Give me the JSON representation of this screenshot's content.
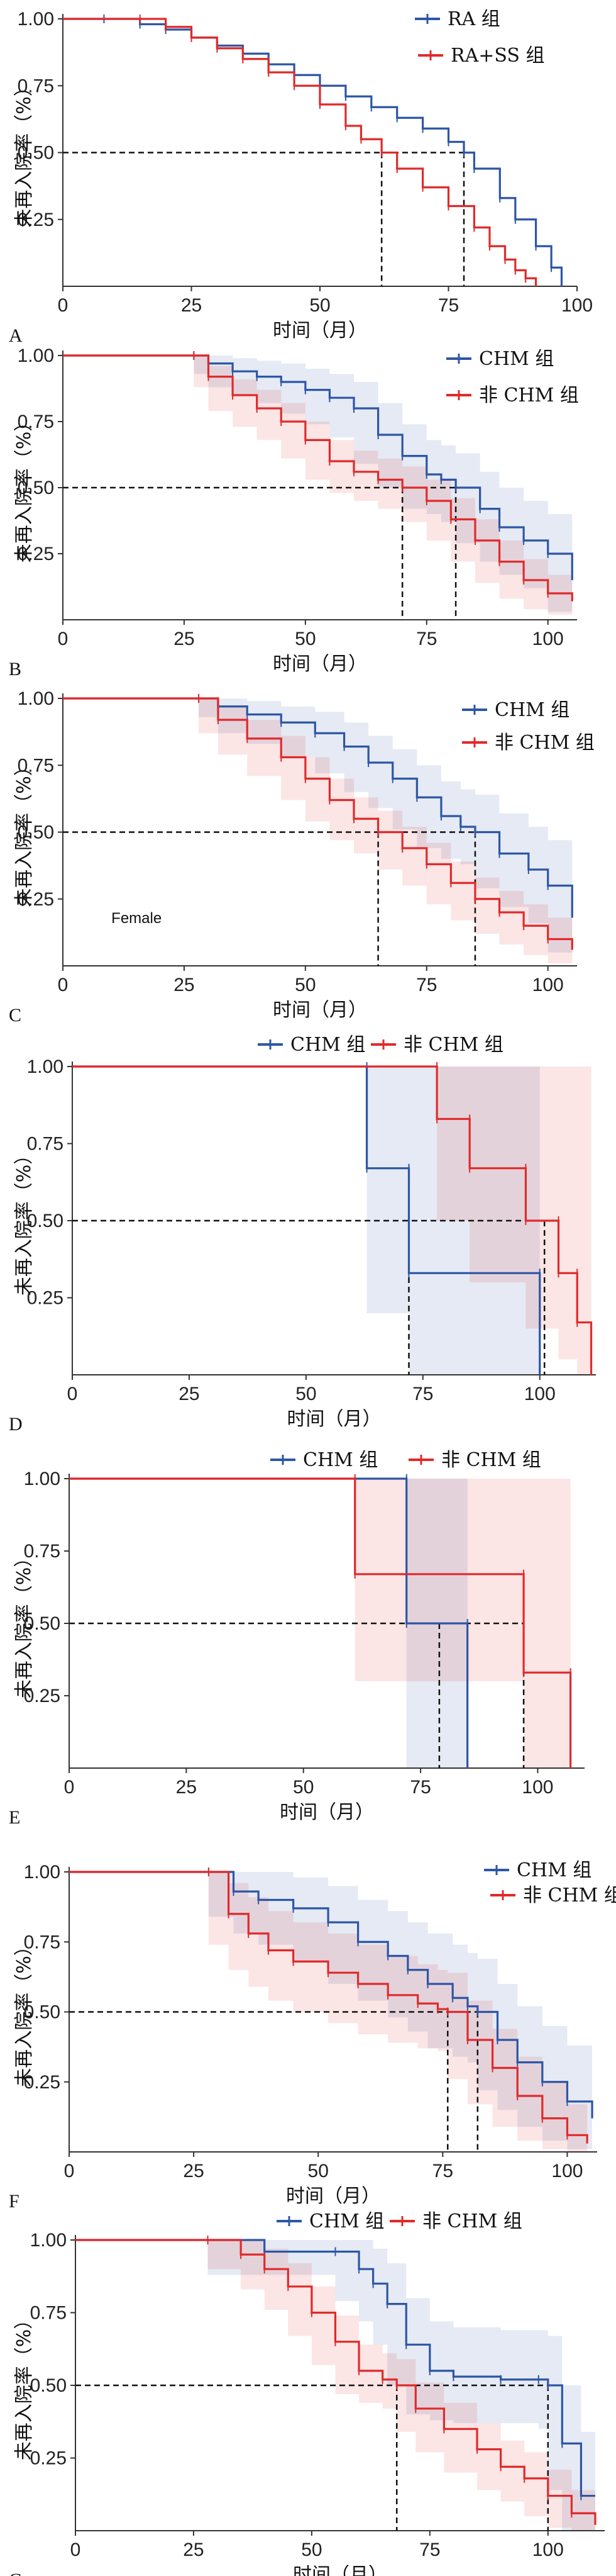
{
  "chart_data": [
    {
      "id": "A",
      "type": "line",
      "panel_label": "A",
      "xlabel": "时间（月）",
      "ylabel": "未再入院率（%）",
      "xlim": [
        0,
        100
      ],
      "ylim": [
        0,
        1
      ],
      "xticks": [
        0,
        25,
        50,
        75,
        100
      ],
      "yticks": [
        0.25,
        0.5,
        0.75,
        1.0
      ],
      "median_line_y": 0.5,
      "legend_position": "top-right",
      "series": [
        {
          "name": "RA 组",
          "color": "#2d56a6",
          "median": 78,
          "x": [
            0,
            8,
            15,
            20,
            25,
            30,
            35,
            40,
            45,
            50,
            55,
            60,
            65,
            70,
            75,
            78,
            80,
            85,
            88,
            92,
            95,
            97
          ],
          "y": [
            1.0,
            1.0,
            0.98,
            0.96,
            0.93,
            0.9,
            0.87,
            0.83,
            0.79,
            0.75,
            0.71,
            0.67,
            0.63,
            0.59,
            0.54,
            0.5,
            0.44,
            0.33,
            0.25,
            0.15,
            0.07,
            0.0
          ],
          "ci_lower": [],
          "ci_upper": []
        },
        {
          "name": "RA+SS 组",
          "color": "#e02a2a",
          "median": 62,
          "x": [
            0,
            15,
            20,
            25,
            30,
            35,
            40,
            45,
            50,
            55,
            58,
            62,
            65,
            70,
            75,
            80,
            83,
            86,
            88,
            90,
            92
          ],
          "y": [
            1.0,
            1.0,
            0.97,
            0.93,
            0.89,
            0.85,
            0.8,
            0.75,
            0.68,
            0.6,
            0.55,
            0.5,
            0.44,
            0.37,
            0.3,
            0.22,
            0.15,
            0.1,
            0.06,
            0.03,
            0.0
          ],
          "ci_lower": [],
          "ci_upper": []
        }
      ]
    },
    {
      "id": "B",
      "type": "line",
      "panel_label": "B",
      "xlabel": "时间（月）",
      "ylabel": "未再入院率（%）",
      "xlim": [
        0,
        106
      ],
      "ylim": [
        0,
        1
      ],
      "xticks": [
        0,
        25,
        50,
        75,
        100
      ],
      "yticks": [
        0.25,
        0.5,
        0.75,
        1.0
      ],
      "median_line_y": 0.5,
      "legend_position": "top-right",
      "series": [
        {
          "name": "CHM 组",
          "color": "#2d56a6",
          "median": 81,
          "x": [
            0,
            27,
            30,
            35,
            40,
            45,
            50,
            55,
            60,
            65,
            70,
            75,
            78,
            81,
            86,
            90,
            95,
            100,
            105
          ],
          "y": [
            1.0,
            1.0,
            0.97,
            0.94,
            0.92,
            0.9,
            0.87,
            0.84,
            0.8,
            0.7,
            0.62,
            0.55,
            0.53,
            0.5,
            0.42,
            0.35,
            0.3,
            0.25,
            0.15
          ],
          "ci_lower": [
            1.0,
            1.0,
            0.93,
            0.88,
            0.85,
            0.82,
            0.78,
            0.74,
            0.69,
            0.59,
            0.5,
            0.42,
            0.4,
            0.37,
            0.29,
            0.22,
            0.17,
            0.12,
            0.03
          ],
          "ci_upper": [
            1.0,
            1.0,
            1.0,
            0.99,
            0.98,
            0.97,
            0.95,
            0.93,
            0.9,
            0.82,
            0.74,
            0.68,
            0.66,
            0.63,
            0.56,
            0.5,
            0.45,
            0.4,
            0.32
          ]
        },
        {
          "name": "非 CHM 组",
          "color": "#e02a2a",
          "median": 70,
          "x": [
            0,
            27,
            30,
            35,
            40,
            45,
            50,
            55,
            60,
            65,
            70,
            75,
            80,
            85,
            90,
            95,
            100,
            105
          ],
          "y": [
            1.0,
            1.0,
            0.92,
            0.85,
            0.8,
            0.75,
            0.68,
            0.6,
            0.56,
            0.53,
            0.5,
            0.45,
            0.38,
            0.3,
            0.22,
            0.15,
            0.1,
            0.07
          ],
          "ci_lower": [
            1.0,
            1.0,
            0.88,
            0.79,
            0.73,
            0.68,
            0.61,
            0.53,
            0.48,
            0.45,
            0.42,
            0.37,
            0.3,
            0.22,
            0.14,
            0.08,
            0.04,
            0.02
          ],
          "ci_upper": [
            1.0,
            1.0,
            0.96,
            0.91,
            0.87,
            0.82,
            0.75,
            0.68,
            0.64,
            0.61,
            0.58,
            0.53,
            0.46,
            0.38,
            0.3,
            0.23,
            0.17,
            0.13
          ]
        }
      ]
    },
    {
      "id": "C",
      "type": "line",
      "panel_label": "C",
      "annotation": "Female",
      "xlabel": "时间（月）",
      "ylabel": "未再入院率（%）",
      "xlim": [
        0,
        106
      ],
      "ylim": [
        0,
        1
      ],
      "xticks": [
        0,
        25,
        50,
        75,
        100
      ],
      "yticks": [
        0.25,
        0.5,
        0.75,
        1.0
      ],
      "median_line_y": 0.5,
      "legend_position": "top-right",
      "series": [
        {
          "name": "CHM 组",
          "color": "#2d56a6",
          "median": 85,
          "x": [
            0,
            28,
            32,
            38,
            45,
            52,
            58,
            63,
            68,
            73,
            78,
            82,
            85,
            90,
            96,
            100,
            105
          ],
          "y": [
            1.0,
            1.0,
            0.97,
            0.94,
            0.91,
            0.87,
            0.82,
            0.76,
            0.7,
            0.63,
            0.56,
            0.52,
            0.5,
            0.42,
            0.36,
            0.3,
            0.18
          ],
          "ci_lower": [
            1.0,
            1.0,
            0.93,
            0.87,
            0.83,
            0.78,
            0.72,
            0.65,
            0.59,
            0.51,
            0.44,
            0.4,
            0.38,
            0.29,
            0.22,
            0.16,
            0.05
          ],
          "ci_upper": [
            1.0,
            1.0,
            1.0,
            0.99,
            0.97,
            0.95,
            0.91,
            0.86,
            0.81,
            0.75,
            0.69,
            0.66,
            0.64,
            0.57,
            0.52,
            0.47,
            0.38
          ]
        },
        {
          "name": "非 CHM 组",
          "color": "#e02a2a",
          "median": 65,
          "x": [
            0,
            28,
            32,
            38,
            45,
            50,
            55,
            60,
            65,
            70,
            75,
            80,
            85,
            90,
            95,
            100,
            105
          ],
          "y": [
            1.0,
            1.0,
            0.92,
            0.85,
            0.78,
            0.7,
            0.62,
            0.55,
            0.5,
            0.44,
            0.38,
            0.31,
            0.25,
            0.2,
            0.15,
            0.1,
            0.06
          ],
          "ci_lower": [
            1.0,
            1.0,
            0.87,
            0.79,
            0.71,
            0.62,
            0.54,
            0.47,
            0.42,
            0.36,
            0.3,
            0.23,
            0.17,
            0.12,
            0.08,
            0.04,
            0.01
          ],
          "ci_upper": [
            1.0,
            1.0,
            0.97,
            0.92,
            0.86,
            0.78,
            0.7,
            0.63,
            0.58,
            0.52,
            0.46,
            0.39,
            0.33,
            0.28,
            0.23,
            0.18,
            0.13
          ]
        }
      ]
    },
    {
      "id": "D",
      "type": "line",
      "panel_label": "D",
      "xlabel": "时间（月）",
      "ylabel": "未再入院率（%）",
      "xlim": [
        0,
        112
      ],
      "ylim": [
        0,
        1
      ],
      "xticks": [
        0,
        25,
        50,
        75,
        100
      ],
      "yticks": [
        0.25,
        0.5,
        0.75,
        1.0
      ],
      "median_line_y": 0.5,
      "legend_position": "top",
      "series": [
        {
          "name": "CHM 组",
          "color": "#2d56a6",
          "median": 72,
          "x": [
            0,
            63,
            63,
            72,
            72,
            100,
            100
          ],
          "y": [
            1.0,
            1.0,
            0.67,
            0.67,
            0.33,
            0.33,
            0.0
          ],
          "ci_lower": [
            1.0,
            1.0,
            0.2,
            0.2,
            0.0,
            0.0,
            0.0
          ],
          "ci_upper": [
            1.0,
            1.0,
            1.0,
            1.0,
            1.0,
            1.0,
            1.0
          ]
        },
        {
          "name": "非 CHM 组",
          "color": "#e02a2a",
          "median": 101,
          "x": [
            0,
            78,
            78,
            85,
            85,
            97,
            97,
            104,
            104,
            108,
            108,
            111
          ],
          "y": [
            1.0,
            1.0,
            0.83,
            0.83,
            0.67,
            0.67,
            0.5,
            0.5,
            0.33,
            0.33,
            0.17,
            0.0
          ],
          "ci_lower": [
            1.0,
            1.0,
            0.5,
            0.5,
            0.3,
            0.3,
            0.15,
            0.15,
            0.05,
            0.05,
            0.0,
            0.0
          ],
          "ci_upper": [
            1.0,
            1.0,
            1.0,
            1.0,
            1.0,
            1.0,
            1.0,
            1.0,
            1.0,
            1.0,
            1.0,
            1.0
          ]
        }
      ]
    },
    {
      "id": "E",
      "type": "line",
      "panel_label": "E",
      "xlabel": "时间（月）",
      "ylabel": "未再入院率（%）",
      "xlim": [
        0,
        110
      ],
      "ylim": [
        0,
        1
      ],
      "xticks": [
        0,
        25,
        50,
        75,
        100
      ],
      "yticks": [
        0.25,
        0.5,
        0.75,
        1.0
      ],
      "median_line_y": 0.5,
      "legend_position": "top",
      "series": [
        {
          "name": "CHM 组",
          "color": "#2d56a6",
          "median": 79,
          "x": [
            0,
            72,
            72,
            85,
            85
          ],
          "y": [
            1.0,
            1.0,
            0.5,
            0.5,
            0.0
          ],
          "ci_lower": [
            1.0,
            1.0,
            0.0,
            0.0,
            0.0
          ],
          "ci_upper": [
            1.0,
            1.0,
            1.0,
            1.0,
            1.0
          ]
        },
        {
          "name": "非 CHM 组",
          "color": "#e02a2a",
          "median": 97,
          "x": [
            0,
            61,
            61,
            97,
            97,
            107,
            107
          ],
          "y": [
            1.0,
            1.0,
            0.67,
            0.67,
            0.33,
            0.33,
            0.0
          ],
          "ci_lower": [
            1.0,
            1.0,
            0.3,
            0.3,
            0.0,
            0.0,
            0.0
          ],
          "ci_upper": [
            1.0,
            1.0,
            1.0,
            1.0,
            1.0,
            1.0,
            1.0
          ]
        }
      ]
    },
    {
      "id": "F",
      "type": "line",
      "panel_label": "F",
      "xlabel": "时间（月）",
      "ylabel": "未再入院率（%）",
      "xlim": [
        0,
        106
      ],
      "ylim": [
        0,
        1
      ],
      "xticks": [
        0,
        25,
        50,
        75,
        100
      ],
      "yticks": [
        0.25,
        0.5,
        0.75,
        1.0
      ],
      "median_line_y": 0.5,
      "legend_position": "top-right",
      "series": [
        {
          "name": "CHM 组",
          "color": "#2d56a6",
          "median": 82,
          "x": [
            0,
            28,
            33,
            38,
            45,
            52,
            58,
            64,
            68,
            72,
            77,
            80,
            82,
            86,
            90,
            95,
            100,
            105
          ],
          "y": [
            1.0,
            1.0,
            0.93,
            0.9,
            0.87,
            0.82,
            0.75,
            0.7,
            0.65,
            0.6,
            0.55,
            0.52,
            0.5,
            0.4,
            0.32,
            0.25,
            0.18,
            0.12
          ],
          "ci_lower": [
            1.0,
            1.0,
            0.84,
            0.78,
            0.74,
            0.68,
            0.6,
            0.54,
            0.48,
            0.43,
            0.37,
            0.34,
            0.32,
            0.22,
            0.15,
            0.09,
            0.04,
            0.01
          ],
          "ci_upper": [
            1.0,
            1.0,
            1.0,
            1.0,
            0.98,
            0.95,
            0.9,
            0.86,
            0.82,
            0.78,
            0.74,
            0.71,
            0.69,
            0.6,
            0.52,
            0.45,
            0.38,
            0.32
          ]
        },
        {
          "name": "非 CHM 组",
          "color": "#e02a2a",
          "median": 76,
          "x": [
            0,
            28,
            32,
            36,
            40,
            45,
            52,
            58,
            64,
            70,
            74,
            76,
            80,
            85,
            90,
            95,
            100,
            104
          ],
          "y": [
            1.0,
            1.0,
            0.85,
            0.78,
            0.72,
            0.68,
            0.64,
            0.6,
            0.56,
            0.53,
            0.51,
            0.5,
            0.4,
            0.3,
            0.2,
            0.12,
            0.06,
            0.03
          ],
          "ci_lower": [
            1.0,
            1.0,
            0.74,
            0.65,
            0.59,
            0.54,
            0.5,
            0.46,
            0.42,
            0.39,
            0.37,
            0.36,
            0.26,
            0.17,
            0.09,
            0.04,
            0.01,
            0.0
          ],
          "ci_upper": [
            1.0,
            1.0,
            0.96,
            0.91,
            0.86,
            0.82,
            0.78,
            0.74,
            0.7,
            0.67,
            0.65,
            0.64,
            0.54,
            0.44,
            0.34,
            0.25,
            0.17,
            0.12
          ]
        }
      ]
    },
    {
      "id": "G",
      "type": "line",
      "panel_label": "G",
      "xlabel": "时间（月）",
      "ylabel": "未再入院率（%）",
      "xlim": [
        0,
        112
      ],
      "ylim": [
        0,
        1
      ],
      "xticks": [
        0,
        25,
        50,
        75,
        100
      ],
      "yticks": [
        0.25,
        0.5,
        0.75,
        1.0
      ],
      "median_line_y": 0.5,
      "legend_position": "top",
      "series": [
        {
          "name": "CHM 组",
          "color": "#2d56a6",
          "median": 100,
          "x": [
            0,
            28,
            40,
            55,
            60,
            63,
            66,
            70,
            75,
            80,
            90,
            98,
            100,
            103,
            107,
            110
          ],
          "y": [
            1.0,
            1.0,
            0.96,
            0.96,
            0.9,
            0.85,
            0.78,
            0.64,
            0.55,
            0.53,
            0.52,
            0.52,
            0.5,
            0.3,
            0.12,
            0.12
          ],
          "ci_lower": [
            1.0,
            1.0,
            0.88,
            0.88,
            0.79,
            0.72,
            0.64,
            0.5,
            0.4,
            0.38,
            0.37,
            0.37,
            0.35,
            0.14,
            0.0,
            0.0
          ],
          "ci_upper": [
            1.0,
            1.0,
            1.0,
            1.0,
            1.0,
            0.97,
            0.92,
            0.8,
            0.72,
            0.7,
            0.69,
            0.69,
            0.67,
            0.5,
            0.34,
            0.34
          ]
        },
        {
          "name": "非 CHM 组",
          "color": "#e02a2a",
          "median": 68,
          "x": [
            0,
            28,
            35,
            40,
            45,
            50,
            55,
            60,
            65,
            68,
            72,
            78,
            85,
            90,
            95,
            100,
            105,
            110
          ],
          "y": [
            1.0,
            1.0,
            0.95,
            0.9,
            0.84,
            0.75,
            0.65,
            0.55,
            0.52,
            0.5,
            0.42,
            0.35,
            0.28,
            0.22,
            0.18,
            0.12,
            0.06,
            0.02
          ],
          "ci_lower": [
            1.0,
            1.0,
            0.9,
            0.83,
            0.76,
            0.67,
            0.57,
            0.47,
            0.44,
            0.42,
            0.34,
            0.27,
            0.2,
            0.14,
            0.1,
            0.05,
            0.01,
            0.0
          ],
          "ci_upper": [
            1.0,
            1.0,
            1.0,
            0.97,
            0.92,
            0.84,
            0.74,
            0.64,
            0.61,
            0.59,
            0.51,
            0.44,
            0.37,
            0.31,
            0.27,
            0.21,
            0.14,
            0.08
          ]
        }
      ]
    }
  ]
}
